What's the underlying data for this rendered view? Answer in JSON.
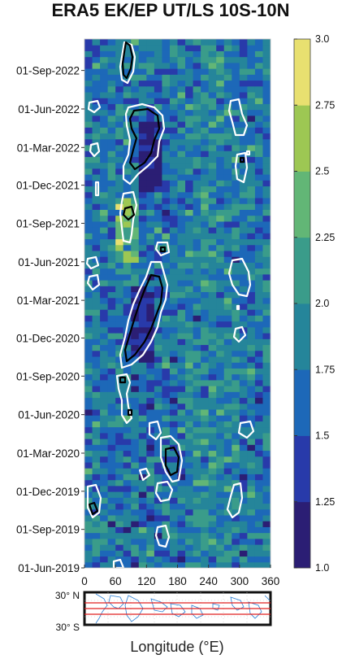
{
  "chart_data": {
    "type": "heatmap",
    "title": "ERA5 EK/EP UT/LS 10S-10N",
    "xlabel": "Longitude (°E)",
    "ylabel": "",
    "xlim": [
      0,
      360
    ],
    "x_ticks": [
      "0",
      "60",
      "120",
      "180",
      "240",
      "300",
      "360"
    ],
    "y_ticks": [
      "01-Jun-2019",
      "01-Sep-2019",
      "01-Dec-2019",
      "01-Mar-2020",
      "01-Jun-2020",
      "01-Sep-2020",
      "01-Dec-2020",
      "01-Mar-2021",
      "01-Jun-2021",
      "01-Sep-2021",
      "01-Dec-2021",
      "01-Mar-2022",
      "01-Jun-2022",
      "01-Sep-2022"
    ],
    "y_range": [
      "2019-06-01",
      "2022-11-15"
    ],
    "colorbar": {
      "min": 1.0,
      "max": 3.0,
      "ticks": [
        "1.0",
        "1.25",
        "1.5",
        "1.75",
        "2.0",
        "2.25",
        "2.5",
        "2.75",
        "3.0"
      ],
      "colors": [
        "#2b1e74",
        "#283aaa",
        "#1d68b8",
        "#25859a",
        "#3a9c8a",
        "#62b676",
        "#9dc753",
        "#e8e070"
      ]
    },
    "map_inset": {
      "lat_labels": [
        "30° N",
        "30° S"
      ],
      "band": "10S-10N"
    },
    "features": [
      {
        "name": "region-of-low-values-near-100E-late-2020",
        "lon": [
          90,
          140
        ],
        "date": [
          "2020-10-01",
          "2021-04-01"
        ],
        "level": "low"
      },
      {
        "name": "region-of-low-values-near-110E-2022",
        "lon": [
          100,
          150
        ],
        "date": [
          "2021-11-15",
          "2022-05-01"
        ],
        "level": "low"
      },
      {
        "name": "region-of-high-values-near-80E",
        "lon": [
          60,
          110
        ],
        "date": [
          "2021-06-01",
          "2021-11-01"
        ],
        "level": "high"
      }
    ]
  }
}
